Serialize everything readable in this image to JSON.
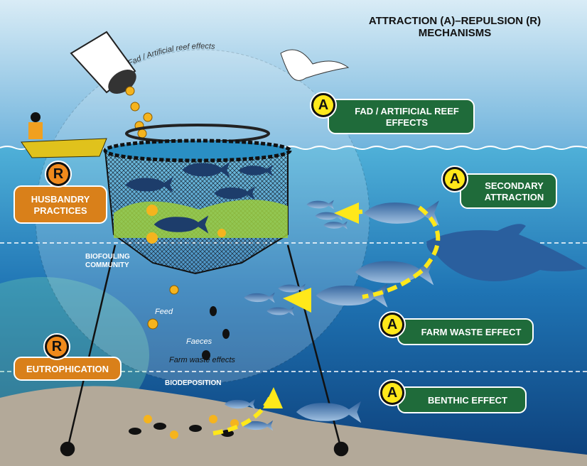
{
  "title": {
    "line1": "ATTRACTION (A)–REPULSION (R)",
    "line2": "MECHANISMS"
  },
  "arc_label": "Fad / Artificial reef effects",
  "mechanisms": [
    {
      "badge": "A",
      "lines": [
        "FAD / ARTIFICIAL REEF",
        "EFFECTS"
      ]
    },
    {
      "badge": "A",
      "lines": [
        "SECONDARY",
        "ATTRACTION"
      ]
    },
    {
      "badge": "A",
      "lines": [
        "FARM WASTE EFFECT"
      ]
    },
    {
      "badge": "A",
      "lines": [
        "BENTHIC EFFECT"
      ]
    },
    {
      "badge": "R",
      "lines": [
        "HUSBANDRY",
        "PRACTICES"
      ]
    },
    {
      "badge": "R",
      "lines": [
        "EUTROPHICATION"
      ]
    }
  ],
  "annotations": {
    "biofouling": [
      "BIOFOULING",
      "COMMUNITY"
    ],
    "feed": "Feed",
    "faeces": "Faeces",
    "farm_waste": "Farm waste effects",
    "biodeposition": "BIODEPOSITION"
  }
}
